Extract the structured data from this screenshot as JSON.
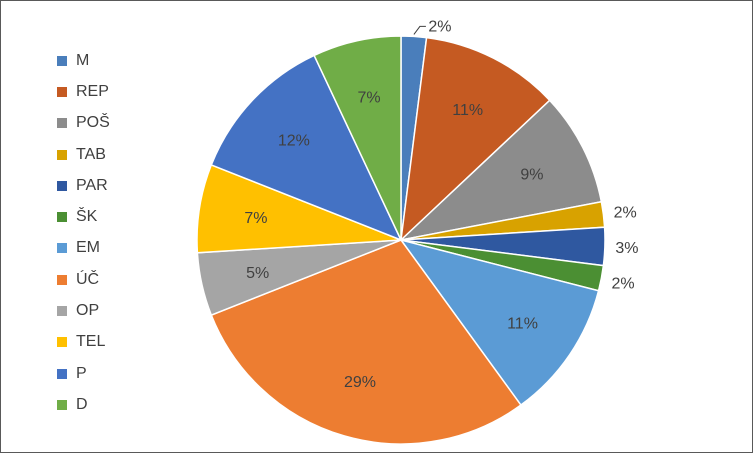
{
  "chart_data": {
    "type": "pie",
    "title": "",
    "legend_position": "left",
    "start_angle_deg": 0,
    "categories": [
      "M",
      "REP",
      "POŠ",
      "TAB",
      "PAR",
      "ŠK",
      "EM",
      "ÚČ",
      "OP",
      "TEL",
      "P",
      "D"
    ],
    "values": [
      2,
      11,
      9,
      2,
      3,
      2,
      11,
      29,
      5,
      7,
      12,
      7
    ],
    "labels": [
      "2%",
      "11%",
      "9%",
      "2%",
      "3%",
      "2%",
      "11%",
      "29%",
      "5%",
      "7%",
      "12%",
      "7%"
    ],
    "colors": [
      "#4a7ebb",
      "#c55a22",
      "#8c8c8c",
      "#d8a200",
      "#2f58a0",
      "#4b8f33",
      "#5b9bd5",
      "#ed7d31",
      "#a5a5a5",
      "#ffc000",
      "#4472c4",
      "#70ad47"
    ]
  }
}
